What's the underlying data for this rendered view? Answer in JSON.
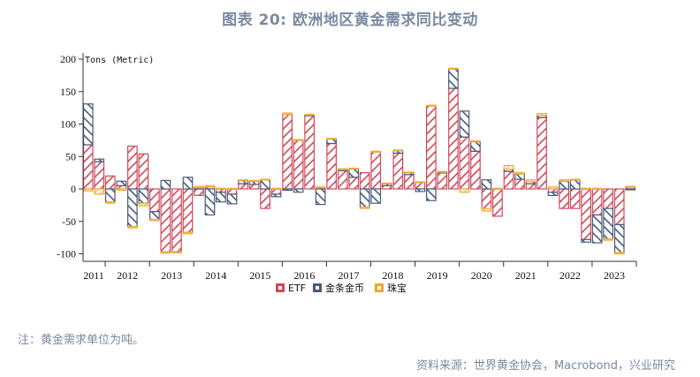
{
  "title": "图表 20: 欧洲地区黄金需求同比变动",
  "note": "注：黄金需求单位为吨。",
  "source": "资料来源：世界黄金协会，Macrobond，兴业研究",
  "colors": {
    "etf": "#d0485a",
    "bar_coin": "#4a5a78",
    "jewelry": "#f0a830",
    "title": "#7a8aa0"
  },
  "chart_data": {
    "type": "bar",
    "stacked": true,
    "title": "图表 20: 欧洲地区黄金需求同比变动",
    "ylabel": "Tons (Metric)",
    "xlabel": "",
    "ylim": [
      -110,
      205
    ],
    "yticks": [
      200,
      150,
      100,
      50,
      0,
      -50,
      -100
    ],
    "grid": false,
    "legend_position": "bottom",
    "year_labels": [
      "2011",
      "2012",
      "2013",
      "2014",
      "2015",
      "2016",
      "2017",
      "2018",
      "2019",
      "2020",
      "2021",
      "2022",
      "2023"
    ],
    "categories": [
      "2011Q3",
      "2011Q4",
      "2012Q1",
      "2012Q2",
      "2012Q3",
      "2012Q4",
      "2013Q1",
      "2013Q2",
      "2013Q3",
      "2013Q4",
      "2014Q1",
      "2014Q2",
      "2014Q3",
      "2014Q4",
      "2015Q1",
      "2015Q2",
      "2015Q3",
      "2015Q4",
      "2016Q1",
      "2016Q2",
      "2016Q3",
      "2016Q4",
      "2017Q1",
      "2017Q2",
      "2017Q3",
      "2017Q4",
      "2018Q1",
      "2018Q2",
      "2018Q3",
      "2018Q4",
      "2019Q1",
      "2019Q2",
      "2019Q3",
      "2019Q4",
      "2020Q1",
      "2020Q2",
      "2020Q3",
      "2020Q4",
      "2021Q1",
      "2021Q2",
      "2021Q3",
      "2021Q4",
      "2022Q1",
      "2022Q2",
      "2022Q3",
      "2022Q4",
      "2023Q1",
      "2023Q2",
      "2023Q3",
      "2023Q4"
    ],
    "series": [
      {
        "name": "ETF",
        "values": [
          68,
          42,
          20,
          5,
          66,
          54,
          -35,
          -97,
          -97,
          -67,
          -10,
          3,
          -5,
          -8,
          8,
          7,
          -30,
          -8,
          115,
          75,
          113,
          2,
          70,
          28,
          18,
          25,
          57,
          5,
          55,
          22,
          10,
          128,
          25,
          155,
          80,
          58,
          -30,
          -42,
          27,
          15,
          8,
          110,
          -5,
          -30,
          -30,
          -78,
          -40,
          -30,
          -55,
          3
        ]
      },
      {
        "name": "金条金币",
        "values": [
          63,
          4,
          -20,
          7,
          -58,
          -22,
          -12,
          13,
          0,
          18,
          2,
          -40,
          -15,
          -15,
          5,
          5,
          14,
          -4,
          -2,
          -5,
          1,
          -24,
          7,
          2,
          13,
          -28,
          -22,
          3,
          4,
          3,
          -4,
          -18,
          1,
          30,
          40,
          15,
          14,
          0,
          3,
          8,
          3,
          3,
          -5,
          12,
          14,
          -4,
          -43,
          -47,
          -43,
          -1
        ]
      },
      {
        "name": "珠宝",
        "values": [
          -3,
          -8,
          -2,
          -2,
          -2,
          -4,
          -2,
          -2,
          -1,
          -2,
          2,
          2,
          1,
          1,
          1,
          1,
          1,
          1,
          2,
          1,
          1,
          1,
          1,
          1,
          1,
          -2,
          1,
          1,
          1,
          1,
          1,
          1,
          1,
          1,
          -5,
          1,
          -4,
          1,
          6,
          2,
          3,
          3,
          3,
          2,
          1,
          1,
          1,
          -2,
          -2,
          1
        ]
      }
    ]
  },
  "legend": [
    {
      "label": "ETF",
      "key": "etf"
    },
    {
      "label": "金条金币",
      "key": "bar_coin"
    },
    {
      "label": "珠宝",
      "key": "jewelry"
    }
  ]
}
